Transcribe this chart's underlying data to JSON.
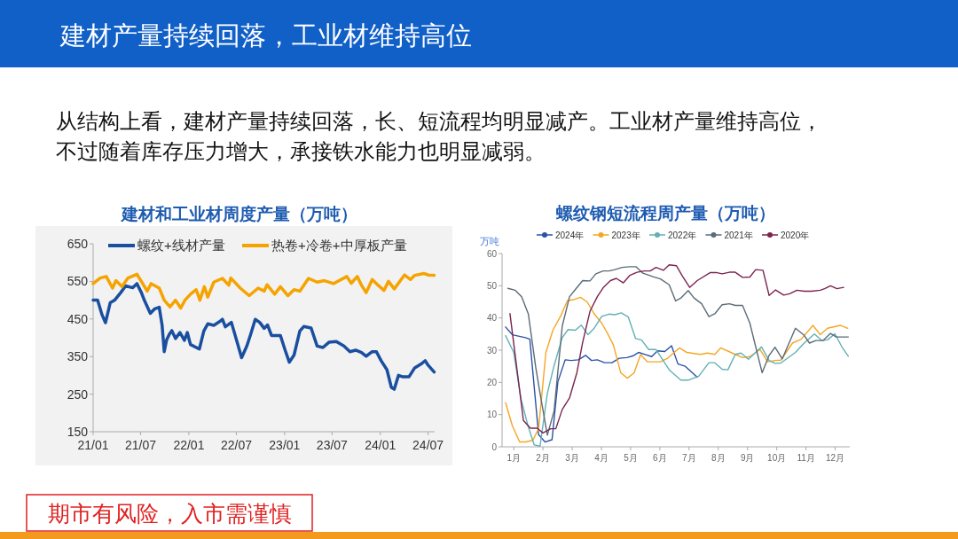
{
  "chart_data": [
    {
      "type": "other",
      "title": "建材产量持续回落，工业材维持高位",
      "annotations": [
        "从结构上看，建材产量持续回落，长、短流程均明显减产。工业材产量维持高位，",
        "不过随着库存压力增大，承接铁水能力也明显减弱。",
        "期市有风险，入市需谨慎"
      ]
    },
    {
      "type": "line",
      "title": "建材和工业材周度产量（万吨）",
      "xlim": [
        "2021-01-01",
        "2024-07-26"
      ],
      "xticks": [
        {
          "value": "2021-01-01",
          "label": "21/01"
        },
        {
          "value": "2021-07-01",
          "label": "21/07"
        },
        {
          "value": "2022-01-01",
          "label": "22/01"
        },
        {
          "value": "2022-07-01",
          "label": "22/07"
        },
        {
          "value": "2023-01-01",
          "label": "23/01"
        },
        {
          "value": "2023-07-01",
          "label": "23/07"
        },
        {
          "value": "2024-01-01",
          "label": "24/01"
        },
        {
          "value": "2024-07-01",
          "label": "24/07"
        }
      ],
      "ylim": [
        150,
        650
      ],
      "yticks": [
        150,
        250,
        350,
        450,
        550,
        650
      ],
      "legend": "top",
      "grid": false,
      "series": [
        {
          "name": "螺纹+线材产量",
          "color": "#1a4fa0",
          "x": [
            "2021-01-01",
            "2021-01-18",
            "2021-02-04",
            "2021-02-17",
            "2021-03-07",
            "2021-03-24",
            "2021-04-16",
            "2021-05-05",
            "2021-06-01",
            "2021-06-17",
            "2021-07-04",
            "2021-07-15",
            "2021-08-07",
            "2021-08-24",
            "2021-09-10",
            "2021-09-21",
            "2021-09-29",
            "2021-10-08",
            "2021-10-19",
            "2021-10-28",
            "2021-11-11",
            "2021-11-28",
            "2021-12-15",
            "2021-12-26",
            "2022-01-07",
            "2022-02-10",
            "2022-02-27",
            "2022-03-14",
            "2022-04-06",
            "2022-04-28",
            "2022-05-09",
            "2022-05-20",
            "2022-06-12",
            "2022-07-05",
            "2022-07-21",
            "2022-08-10",
            "2022-08-25",
            "2022-09-11",
            "2022-09-28",
            "2022-10-15",
            "2022-10-28",
            "2022-11-12",
            "2022-12-16",
            "2023-01-03",
            "2023-01-19",
            "2023-02-06",
            "2023-02-28",
            "2023-03-15",
            "2023-04-12",
            "2023-05-05",
            "2023-05-27",
            "2023-06-19",
            "2023-07-17",
            "2023-08-15",
            "2023-09-07",
            "2023-09-29",
            "2023-10-21",
            "2023-11-08",
            "2023-12-01",
            "2023-12-17",
            "2024-01-04",
            "2024-01-26",
            "2024-02-12",
            "2024-02-23",
            "2024-03-10",
            "2024-03-27",
            "2024-04-19",
            "2024-05-11",
            "2024-06-06",
            "2024-06-20",
            "2024-07-01",
            "2024-07-24"
          ],
          "values": [
            500,
            500,
            461,
            440,
            493,
            500,
            520,
            538,
            533,
            544,
            520,
            500,
            465,
            477,
            481,
            433,
            363,
            394,
            410,
            419,
            398,
            414,
            393,
            414,
            382,
            370,
            418,
            437,
            433,
            443,
            449,
            429,
            441,
            386,
            347,
            378,
            410,
            449,
            441,
            425,
            434,
            406,
            406,
            367,
            335,
            354,
            418,
            430,
            426,
            378,
            374,
            388,
            390,
            378,
            363,
            367,
            361,
            351,
            363,
            363,
            339,
            315,
            268,
            263,
            300,
            296,
            296,
            320,
            331,
            339,
            327,
            309
          ]
        },
        {
          "name": "热卷+冷卷+中厚板产量",
          "color": "#f5a300",
          "x": [
            "2021-01-01",
            "2021-01-28",
            "2021-02-20",
            "2021-03-16",
            "2021-03-29",
            "2021-04-21",
            "2021-05-14",
            "2021-06-17",
            "2021-07-09",
            "2021-07-26",
            "2021-08-10",
            "2021-09-10",
            "2021-09-29",
            "2021-10-21",
            "2021-11-11",
            "2021-12-01",
            "2021-12-17",
            "2022-01-07",
            "2022-01-29",
            "2022-02-12",
            "2022-03-01",
            "2022-03-14",
            "2022-04-06",
            "2022-05-09",
            "2022-06-02",
            "2022-06-10",
            "2022-07-16",
            "2022-08-19",
            "2022-09-22",
            "2022-10-15",
            "2022-10-26",
            "2022-11-24",
            "2022-12-16",
            "2023-01-14",
            "2023-02-06",
            "2023-02-28",
            "2023-04-02",
            "2023-05-05",
            "2023-06-02",
            "2023-07-06",
            "2023-08-26",
            "2023-09-12",
            "2023-10-05",
            "2023-10-21",
            "2023-11-08",
            "2023-12-01",
            "2023-12-23",
            "2024-01-15",
            "2024-02-01",
            "2024-02-23",
            "2024-04-02",
            "2024-04-25",
            "2024-05-11",
            "2024-06-15",
            "2024-07-01",
            "2024-07-24"
          ],
          "values": [
            544,
            559,
            563,
            532,
            552,
            536,
            559,
            569,
            544,
            524,
            544,
            532,
            500,
            482,
            500,
            479,
            500,
            516,
            528,
            500,
            536,
            508,
            548,
            558,
            540,
            559,
            532,
            512,
            532,
            524,
            541,
            516,
            536,
            512,
            528,
            524,
            558,
            548,
            552,
            544,
            563,
            545,
            563,
            540,
            520,
            555,
            540,
            526,
            550,
            530,
            567,
            555,
            566,
            571,
            567,
            566
          ]
        }
      ]
    },
    {
      "type": "line",
      "title": "螺纹钢短流程周产量（万吨）",
      "ylabel": "万吨",
      "xlim": [
        0.6,
        12.5
      ],
      "xticks": [
        {
          "value": 1,
          "label": "1月"
        },
        {
          "value": 2,
          "label": "2月"
        },
        {
          "value": 3,
          "label": "3月"
        },
        {
          "value": 4,
          "label": "4月"
        },
        {
          "value": 5,
          "label": "5月"
        },
        {
          "value": 6,
          "label": "6月"
        },
        {
          "value": 7,
          "label": "7月"
        },
        {
          "value": 8,
          "label": "8月"
        },
        {
          "value": 9,
          "label": "9月"
        },
        {
          "value": 10,
          "label": "10月"
        },
        {
          "value": 11,
          "label": "11月"
        },
        {
          "value": 12,
          "label": "12月"
        }
      ],
      "ylim": [
        0,
        60
      ],
      "yticks": [
        0,
        10,
        20,
        30,
        40,
        50,
        60
      ],
      "legend": "top",
      "grid": false,
      "series": [
        {
          "name": "2024年",
          "color": "#2a52a8",
          "x": [
            0.72,
            0.95,
            1.4,
            1.55,
            1.85,
            2.07,
            2.31,
            2.51,
            2.76,
            2.96,
            3.21,
            3.46,
            3.66,
            3.86,
            4.11,
            4.36,
            4.61,
            4.87,
            5.07,
            5.27,
            5.52,
            5.72,
            5.92,
            6.17,
            6.4,
            6.62,
            6.87,
            7.28
          ],
          "values": [
            37.2,
            34.8,
            33.9,
            33.4,
            3.8,
            1.5,
            2.2,
            20.2,
            27,
            26.8,
            27,
            28.4,
            26.8,
            27,
            26.1,
            26.1,
            27.5,
            27.7,
            28.2,
            29.3,
            28.6,
            28,
            29.8,
            29.6,
            31.4,
            25.7,
            25,
            21.6
          ]
        },
        {
          "name": "2023年",
          "color": "#f5a623",
          "x": [
            0.72,
            0.95,
            1.2,
            1.4,
            1.65,
            1.85,
            2.1,
            2.34,
            2.61,
            2.84,
            3.06,
            3.28,
            3.51,
            3.76,
            4.01,
            4.21,
            4.41,
            4.66,
            4.89,
            5.12,
            5.34,
            5.57,
            6.02,
            6.27,
            6.67,
            6.92,
            7.38,
            7.63,
            7.88,
            8.08,
            8.53,
            8.83,
            9.08,
            9.43,
            9.69,
            9.94,
            10.14,
            10.54,
            10.84,
            11.24,
            11.49,
            11.74,
            12.19,
            12.43
          ],
          "values": [
            13.7,
            6.6,
            1.5,
            1.5,
            2,
            5.6,
            29.3,
            36.2,
            40.7,
            45.4,
            45.7,
            46.4,
            45,
            41.2,
            38.4,
            35.2,
            31.6,
            23,
            21.3,
            23,
            28.6,
            26.4,
            26.4,
            27.5,
            30.7,
            29.3,
            28.7,
            29.1,
            28.7,
            30.7,
            28.9,
            27.7,
            28,
            30.2,
            26.4,
            26.8,
            26.9,
            32.2,
            33.4,
            37.7,
            34.8,
            36.8,
            37.7,
            36.8
          ]
        },
        {
          "name": "2022年",
          "color": "#62b0b5",
          "x": [
            0.72,
            1,
            1.25,
            1.5,
            1.7,
            1.9,
            2.15,
            2.38,
            2.66,
            2.86,
            3.11,
            3.31,
            3.54,
            3.76,
            4.01,
            4.26,
            4.46,
            4.68,
            4.92,
            5.17,
            5.37,
            5.62,
            5.87,
            6.32,
            6.72,
            6.97,
            7.33,
            7.68,
            7.88,
            8.13,
            8.33,
            8.58,
            8.78,
            9.03,
            9.48,
            9.74,
            9.94,
            10.14,
            10.64,
            10.94,
            11.29,
            11.54,
            11.74,
            11.99,
            12.25,
            12.45
          ],
          "values": [
            34.5,
            29.3,
            14.8,
            6.1,
            0.6,
            0.2,
            16.6,
            25.2,
            33.9,
            36.4,
            36.2,
            37.8,
            34.8,
            36.9,
            40.5,
            41.2,
            41,
            41.6,
            40.3,
            33.6,
            33.2,
            30.2,
            30.2,
            23.9,
            20.7,
            20.7,
            21.9,
            26.1,
            26.1,
            24.1,
            23.9,
            28.7,
            29.1,
            27.2,
            31,
            26.8,
            25.9,
            26,
            29.3,
            32.2,
            35,
            33,
            33.2,
            35.1,
            30.7,
            28.1
          ]
        },
        {
          "name": "2021年",
          "color": "#5b6b78",
          "x": [
            0.8,
            1.05,
            1.27,
            1.5,
            1.75,
            1.9,
            2.15,
            2.38,
            2.66,
            2.91,
            3.14,
            3.36,
            3.61,
            3.81,
            4.06,
            4.26,
            4.46,
            4.71,
            4.97,
            5.19,
            5.42,
            5.77,
            6.02,
            6.32,
            6.54,
            6.72,
            6.97,
            7.17,
            7.43,
            7.68,
            7.88,
            8.13,
            8.38,
            8.58,
            8.83,
            9.08,
            9.5,
            9.74,
            9.94,
            10.19,
            10.64,
            10.94,
            11.12,
            11.34,
            11.59,
            11.84,
            12.04,
            12.45
          ],
          "values": [
            49.2,
            48.6,
            46.6,
            41.2,
            24.8,
            16.6,
            3.6,
            11.1,
            37.5,
            46.6,
            49.2,
            51.6,
            51.5,
            53.7,
            54.6,
            54.6,
            55,
            55.7,
            55.9,
            55.9,
            53.9,
            52.8,
            52.1,
            50.3,
            45.3,
            46.2,
            48.5,
            46.2,
            44.4,
            40.4,
            41.3,
            44.1,
            44.4,
            43.9,
            43.9,
            38.4,
            23,
            28.4,
            30.9,
            27.3,
            36.8,
            34.6,
            32.2,
            33,
            33,
            35.2,
            34.1,
            34.1
          ]
        },
        {
          "name": "2020年",
          "color": "#7a2450",
          "x": [
            0.87,
            1.1,
            1.33,
            1.57,
            1.8,
            2,
            2.26,
            2.44,
            2.66,
            2.91,
            3.16,
            3.36,
            3.61,
            3.86,
            4.06,
            4.31,
            4.51,
            4.75,
            4.97,
            5.22,
            5.47,
            5.67,
            5.87,
            6.12,
            6.32,
            6.57,
            6.77,
            7.02,
            7.28,
            7.73,
            7.93,
            8.13,
            8.38,
            8.58,
            8.83,
            9.08,
            9.28,
            9.53,
            9.74,
            9.96,
            10.24,
            10.44,
            10.69,
            10.94,
            11.19,
            11.49,
            11.64,
            11.84,
            12.06,
            12.29
          ],
          "values": [
            41.4,
            24.8,
            8.2,
            5.8,
            5.8,
            4.3,
            5.6,
            5.6,
            11.6,
            15.2,
            23,
            32.5,
            42.1,
            46.6,
            49.4,
            51.6,
            52.3,
            50.9,
            53.2,
            54.2,
            54.6,
            54.6,
            55.7,
            54.8,
            56.5,
            56.2,
            53,
            49.5,
            51.6,
            54.1,
            54.1,
            53.7,
            54.2,
            54.2,
            52.6,
            52.7,
            55,
            54.8,
            47,
            48.7,
            47.1,
            47.5,
            48.6,
            48.3,
            48.3,
            48.6,
            49.1,
            50,
            49.1,
            49.5
          ]
        }
      ]
    }
  ]
}
